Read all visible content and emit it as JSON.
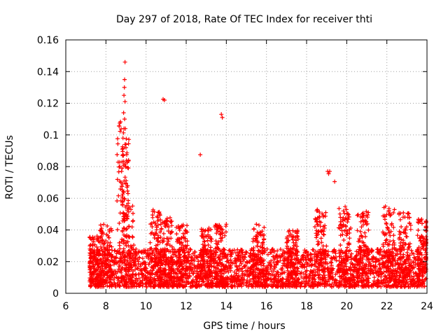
{
  "chart_data": {
    "type": "scatter",
    "title": "Day 297 of 2018, Rate Of TEC Index for receiver thti",
    "xlabel": "GPS time / hours",
    "ylabel": "ROTI / TECUs",
    "xlim": [
      6,
      24
    ],
    "ylim": [
      0,
      0.16
    ],
    "xticks": [
      6,
      8,
      10,
      12,
      14,
      16,
      18,
      20,
      22,
      24
    ],
    "xtick_labels": [
      "6",
      "8",
      "10",
      "12",
      "14",
      "16",
      "18",
      "20",
      "22",
      "24"
    ],
    "yticks": [
      0,
      0.02,
      0.04,
      0.06,
      0.08,
      0.1,
      0.12,
      0.14,
      0.16
    ],
    "ytick_labels": [
      "0",
      "0.02",
      "0.04",
      "0.06",
      "0.08",
      "0.1",
      "0.12",
      "0.14",
      "0.16"
    ],
    "grid": true,
    "marker": "+",
    "series_color": "#ff0000",
    "data_x_range": [
      7.2,
      23.95
    ],
    "baseline_band": [
      0.004,
      0.028
    ],
    "bursts": [
      {
        "x": 7.35,
        "max": 0.038
      },
      {
        "x": 8.0,
        "max": 0.045
      },
      {
        "x": 8.85,
        "max": 0.11
      },
      {
        "x": 9.1,
        "max": 0.065
      },
      {
        "x": 10.5,
        "max": 0.053
      },
      {
        "x": 11.0,
        "max": 0.048
      },
      {
        "x": 11.8,
        "max": 0.044
      },
      {
        "x": 13.0,
        "max": 0.042
      },
      {
        "x": 13.7,
        "max": 0.044
      },
      {
        "x": 15.6,
        "max": 0.044
      },
      {
        "x": 17.3,
        "max": 0.041
      },
      {
        "x": 18.7,
        "max": 0.054
      },
      {
        "x": 19.9,
        "max": 0.055
      },
      {
        "x": 20.8,
        "max": 0.052
      },
      {
        "x": 22.1,
        "max": 0.055
      },
      {
        "x": 22.9,
        "max": 0.051
      },
      {
        "x": 23.8,
        "max": 0.047
      }
    ],
    "outliers": [
      {
        "x": 8.95,
        "y": 0.146
      },
      {
        "x": 8.93,
        "y": 0.135
      },
      {
        "x": 8.92,
        "y": 0.13
      },
      {
        "x": 8.9,
        "y": 0.125
      },
      {
        "x": 8.95,
        "y": 0.121
      },
      {
        "x": 8.88,
        "y": 0.114
      },
      {
        "x": 8.93,
        "y": 0.11
      },
      {
        "x": 8.9,
        "y": 0.104
      },
      {
        "x": 8.97,
        "y": 0.104
      },
      {
        "x": 8.85,
        "y": 0.098
      },
      {
        "x": 8.95,
        "y": 0.094
      },
      {
        "x": 8.82,
        "y": 0.091
      },
      {
        "x": 9.0,
        "y": 0.092
      },
      {
        "x": 8.87,
        "y": 0.087
      },
      {
        "x": 8.8,
        "y": 0.083
      },
      {
        "x": 8.98,
        "y": 0.08
      },
      {
        "x": 8.78,
        "y": 0.077
      },
      {
        "x": 8.75,
        "y": 0.07
      },
      {
        "x": 9.05,
        "y": 0.067
      },
      {
        "x": 9.1,
        "y": 0.063
      },
      {
        "x": 10.85,
        "y": 0.1225
      },
      {
        "x": 10.92,
        "y": 0.122
      },
      {
        "x": 12.7,
        "y": 0.0875
      },
      {
        "x": 13.75,
        "y": 0.113
      },
      {
        "x": 13.8,
        "y": 0.111
      },
      {
        "x": 19.05,
        "y": 0.077
      },
      {
        "x": 19.1,
        "y": 0.0755
      },
      {
        "x": 19.15,
        "y": 0.077
      },
      {
        "x": 19.4,
        "y": 0.0705
      }
    ]
  }
}
